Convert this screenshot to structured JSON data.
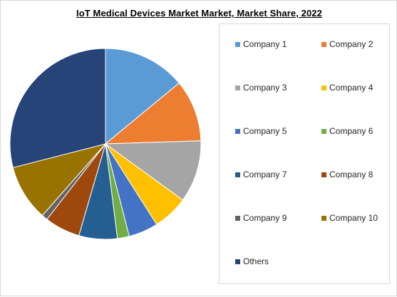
{
  "chart_data": {
    "type": "pie",
    "title": "IoT Medical Devices Market Market, Market Share, 2022",
    "legend_position": "right",
    "slices": [
      {
        "label": "Company 1",
        "value": 14,
        "color": "#5b9bd5"
      },
      {
        "label": "Company 2",
        "value": 10.5,
        "color": "#ed7d31"
      },
      {
        "label": "Company 3",
        "value": 10.5,
        "color": "#a5a5a5"
      },
      {
        "label": "Company 4",
        "value": 6,
        "color": "#ffc000"
      },
      {
        "label": "Company 5",
        "value": 5,
        "color": "#4472c4"
      },
      {
        "label": "Company 6",
        "value": 2,
        "color": "#70ad47"
      },
      {
        "label": "Company 7",
        "value": 6.5,
        "color": "#255e91"
      },
      {
        "label": "Company 8",
        "value": 6,
        "color": "#9e480e"
      },
      {
        "label": "Company 9",
        "value": 1,
        "color": "#636363"
      },
      {
        "label": "Company 10",
        "value": 9.5,
        "color": "#997300"
      },
      {
        "label": "Others",
        "value": 29,
        "color": "#264478"
      }
    ]
  }
}
